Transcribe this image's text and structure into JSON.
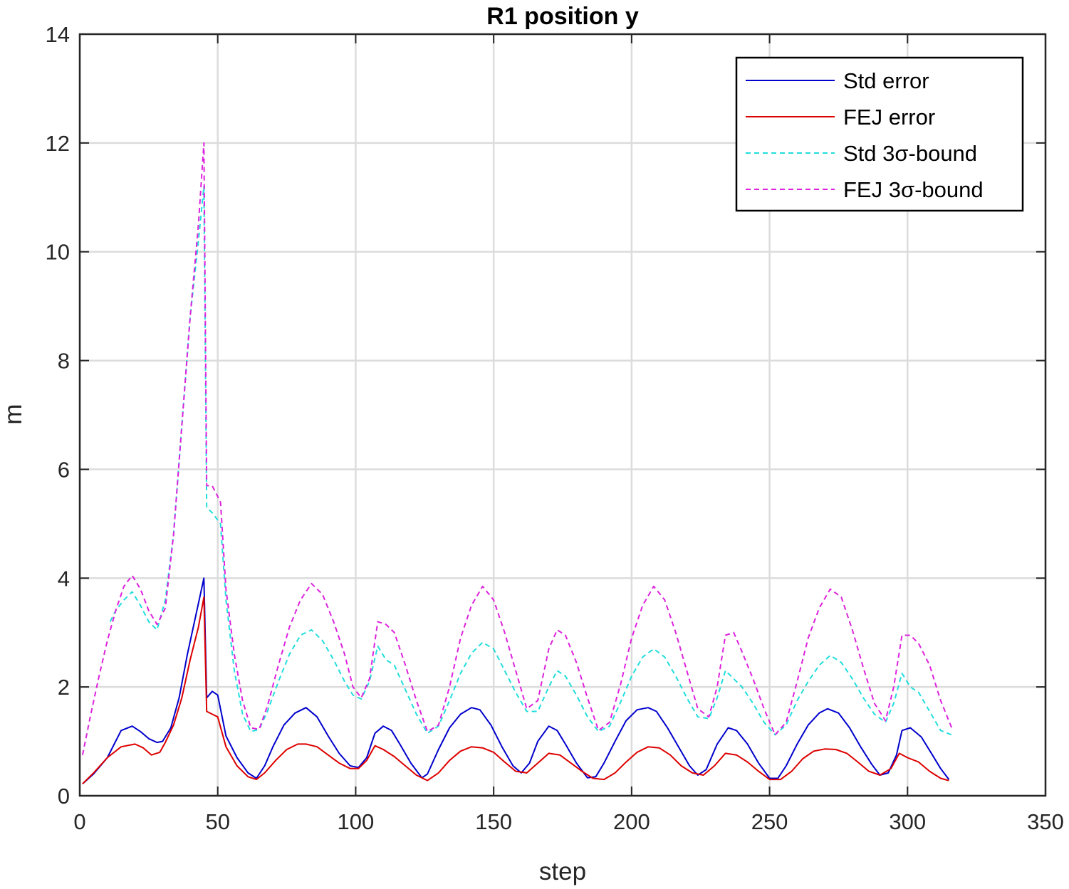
{
  "chart_data": {
    "type": "line",
    "title": "R1 position y",
    "xlabel": "step",
    "ylabel": "m",
    "xlim": [
      0,
      350
    ],
    "ylim": [
      0,
      14
    ],
    "xticks": [
      0,
      50,
      100,
      150,
      200,
      250,
      300,
      350
    ],
    "yticks": [
      0,
      2,
      4,
      6,
      8,
      10,
      12,
      14
    ],
    "grid": true,
    "legend_position": "top-right",
    "series": [
      {
        "name": "Std error",
        "color": "#0000cc",
        "style": "solid",
        "x": [
          1,
          5,
          10,
          15,
          19,
          22,
          25,
          28,
          30,
          33,
          36,
          39,
          42,
          45,
          46,
          48,
          50,
          53,
          57,
          61,
          64,
          67,
          70,
          74,
          78,
          82,
          86,
          90,
          94,
          98,
          101,
          104,
          107,
          110,
          113,
          116,
          120,
          124,
          126,
          130,
          134,
          138,
          142,
          145,
          149,
          153,
          157,
          160,
          163,
          166,
          170,
          173,
          176,
          180,
          184,
          187,
          190,
          194,
          198,
          202,
          206,
          209,
          213,
          217,
          221,
          224,
          227,
          231,
          235,
          238,
          242,
          246,
          250,
          253,
          256,
          260,
          264,
          268,
          271,
          275,
          279,
          283,
          287,
          290,
          293,
          296,
          298,
          301,
          305,
          309,
          312,
          315
        ],
        "y": [
          0.22,
          0.4,
          0.7,
          1.2,
          1.28,
          1.18,
          1.05,
          0.98,
          1.0,
          1.25,
          1.8,
          2.6,
          3.3,
          4.0,
          1.8,
          1.92,
          1.85,
          1.1,
          0.7,
          0.42,
          0.32,
          0.55,
          0.9,
          1.3,
          1.52,
          1.62,
          1.45,
          1.1,
          0.78,
          0.55,
          0.52,
          0.7,
          1.15,
          1.28,
          1.2,
          0.95,
          0.6,
          0.33,
          0.4,
          0.85,
          1.25,
          1.5,
          1.62,
          1.58,
          1.3,
          0.9,
          0.55,
          0.42,
          0.6,
          1.0,
          1.28,
          1.2,
          0.95,
          0.6,
          0.33,
          0.35,
          0.6,
          1.0,
          1.38,
          1.58,
          1.62,
          1.55,
          1.25,
          0.9,
          0.55,
          0.38,
          0.48,
          0.95,
          1.25,
          1.2,
          0.95,
          0.6,
          0.32,
          0.32,
          0.55,
          0.95,
          1.3,
          1.52,
          1.6,
          1.52,
          1.25,
          0.9,
          0.58,
          0.38,
          0.42,
          0.75,
          1.2,
          1.25,
          1.08,
          0.75,
          0.5,
          0.3
        ]
      },
      {
        "name": "FEJ error",
        "color": "#dd0000",
        "style": "solid",
        "x": [
          1,
          5,
          10,
          15,
          20,
          23,
          26,
          29,
          31,
          34,
          37,
          40,
          43,
          45,
          46,
          48,
          50,
          53,
          57,
          61,
          64,
          67,
          71,
          75,
          79,
          82,
          86,
          90,
          94,
          98,
          101,
          104,
          107,
          110,
          114,
          118,
          122,
          126,
          130,
          134,
          138,
          142,
          146,
          150,
          154,
          158,
          162,
          166,
          170,
          174,
          178,
          182,
          186,
          190,
          194,
          198,
          202,
          206,
          210,
          214,
          218,
          222,
          226,
          230,
          234,
          238,
          242,
          246,
          250,
          254,
          258,
          262,
          266,
          270,
          274,
          278,
          282,
          286,
          290,
          294,
          297,
          300,
          304,
          308,
          312,
          315
        ],
        "y": [
          0.22,
          0.42,
          0.7,
          0.9,
          0.95,
          0.88,
          0.75,
          0.8,
          0.98,
          1.3,
          1.8,
          2.5,
          3.1,
          3.65,
          1.55,
          1.5,
          1.45,
          0.9,
          0.55,
          0.35,
          0.3,
          0.42,
          0.65,
          0.85,
          0.95,
          0.95,
          0.9,
          0.75,
          0.6,
          0.5,
          0.5,
          0.65,
          0.92,
          0.85,
          0.72,
          0.55,
          0.38,
          0.28,
          0.42,
          0.65,
          0.82,
          0.9,
          0.88,
          0.8,
          0.62,
          0.45,
          0.42,
          0.6,
          0.78,
          0.75,
          0.6,
          0.45,
          0.32,
          0.3,
          0.42,
          0.62,
          0.8,
          0.9,
          0.88,
          0.75,
          0.55,
          0.42,
          0.38,
          0.55,
          0.78,
          0.75,
          0.62,
          0.45,
          0.3,
          0.3,
          0.45,
          0.68,
          0.82,
          0.86,
          0.85,
          0.78,
          0.62,
          0.45,
          0.38,
          0.5,
          0.78,
          0.7,
          0.62,
          0.45,
          0.32,
          0.28
        ]
      },
      {
        "name": "Std 3σ-bound",
        "color": "#22dddd",
        "style": "dashed",
        "x": [
          11,
          13,
          16,
          19,
          22,
          25,
          28,
          31,
          34,
          37,
          40,
          43,
          45,
          46,
          48,
          51,
          53,
          56,
          59,
          62,
          65,
          68,
          72,
          76,
          80,
          84,
          88,
          92,
          96,
          99,
          102,
          105,
          108,
          111,
          114,
          118,
          122,
          126,
          130,
          134,
          138,
          142,
          146,
          150,
          154,
          158,
          162,
          166,
          170,
          173,
          176,
          180,
          184,
          188,
          192,
          196,
          200,
          204,
          208,
          212,
          216,
          220,
          224,
          228,
          231,
          234,
          237,
          240,
          244,
          248,
          252,
          256,
          260,
          264,
          268,
          272,
          276,
          280,
          284,
          288,
          292,
          295,
          298,
          301,
          304,
          308,
          312,
          316
        ],
        "y": [
          3.2,
          3.4,
          3.6,
          3.75,
          3.5,
          3.2,
          3.05,
          3.6,
          4.8,
          6.8,
          8.8,
          10.2,
          11.2,
          5.3,
          5.2,
          5.0,
          3.6,
          2.3,
          1.5,
          1.18,
          1.22,
          1.55,
          2.1,
          2.6,
          2.95,
          3.05,
          2.85,
          2.5,
          2.1,
          1.85,
          1.78,
          2.1,
          2.75,
          2.5,
          2.4,
          1.95,
          1.5,
          1.15,
          1.28,
          1.75,
          2.25,
          2.62,
          2.82,
          2.7,
          2.3,
          1.9,
          1.55,
          1.55,
          2.0,
          2.3,
          2.2,
          1.85,
          1.45,
          1.18,
          1.28,
          1.72,
          2.2,
          2.55,
          2.7,
          2.55,
          2.2,
          1.8,
          1.45,
          1.42,
          1.8,
          2.3,
          2.15,
          2.0,
          1.7,
          1.35,
          1.12,
          1.3,
          1.75,
          2.1,
          2.4,
          2.58,
          2.45,
          2.15,
          1.8,
          1.5,
          1.35,
          1.7,
          2.25,
          2.0,
          1.9,
          1.55,
          1.2,
          1.12
        ]
      },
      {
        "name": "FEJ 3σ-bound",
        "color": "#dd22dd",
        "style": "dashed",
        "x": [
          1,
          4,
          7,
          10,
          13,
          16,
          19,
          22,
          25,
          28,
          31,
          34,
          37,
          40,
          43,
          45,
          46,
          48,
          51,
          53,
          56,
          59,
          62,
          65,
          68,
          72,
          76,
          80,
          84,
          88,
          92,
          96,
          99,
          102,
          105,
          108,
          111,
          114,
          118,
          122,
          126,
          130,
          134,
          138,
          142,
          146,
          150,
          154,
          158,
          162,
          166,
          170,
          173,
          176,
          180,
          184,
          188,
          192,
          196,
          200,
          204,
          208,
          212,
          216,
          220,
          224,
          228,
          231,
          234,
          237,
          240,
          244,
          248,
          252,
          256,
          260,
          264,
          268,
          272,
          276,
          280,
          284,
          288,
          292,
          295,
          298,
          301,
          304,
          308,
          312,
          316
        ],
        "y": [
          0.75,
          1.5,
          2.2,
          2.85,
          3.4,
          3.85,
          4.05,
          3.8,
          3.4,
          3.15,
          3.45,
          4.8,
          6.8,
          8.8,
          10.5,
          12.0,
          5.7,
          5.7,
          5.4,
          3.8,
          2.6,
          1.75,
          1.25,
          1.22,
          1.65,
          2.4,
          3.1,
          3.6,
          3.9,
          3.7,
          3.2,
          2.6,
          2.0,
          1.8,
          2.15,
          3.2,
          3.15,
          3.0,
          2.4,
          1.75,
          1.18,
          1.3,
          2.0,
          2.9,
          3.5,
          3.85,
          3.6,
          3.0,
          2.3,
          1.6,
          1.75,
          2.7,
          3.05,
          2.95,
          2.45,
          1.8,
          1.2,
          1.35,
          2.05,
          2.9,
          3.5,
          3.85,
          3.6,
          3.0,
          2.3,
          1.6,
          1.45,
          2.0,
          2.95,
          3.0,
          2.65,
          2.15,
          1.6,
          1.12,
          1.35,
          2.1,
          2.9,
          3.45,
          3.8,
          3.65,
          3.05,
          2.35,
          1.7,
          1.38,
          2.0,
          2.95,
          2.95,
          2.8,
          2.4,
          1.75,
          1.25
        ]
      }
    ]
  }
}
